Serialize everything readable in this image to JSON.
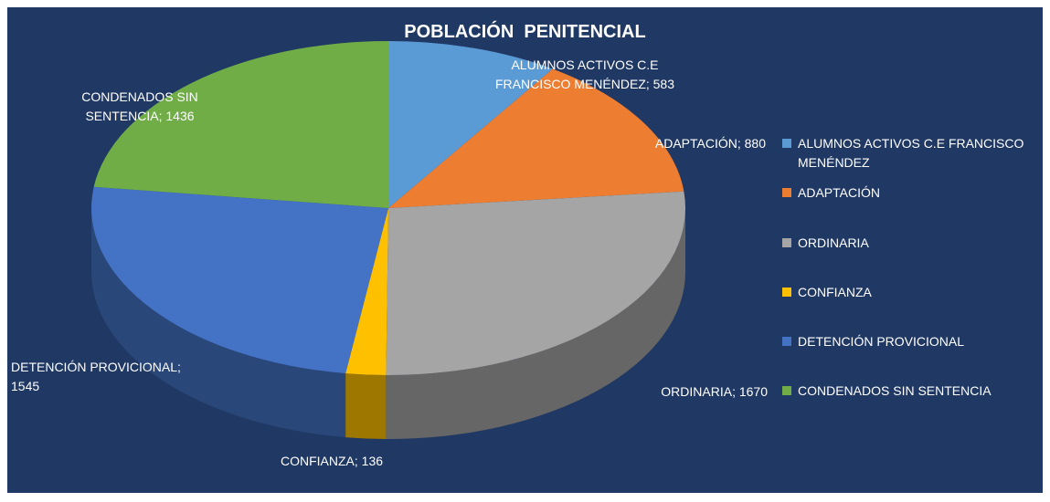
{
  "chart_data": {
    "type": "pie",
    "title": "POBLACIÓN  PENITENCIAL",
    "categories": [
      "ALUMNOS ACTIVOS C.E FRANCISCO MENÉNDEZ",
      "ADAPTACIÓN",
      "ORDINARIA",
      "CONFIANZA",
      "DETENCIÓN PROVICIONAL",
      "CONDENADOS SIN SENTENCIA"
    ],
    "values": [
      583,
      880,
      1670,
      136,
      1545,
      1436
    ],
    "value_labels": [
      "ALUMNOS ACTIVOS C.E FRANCISCO MENÉNDEZ; 583",
      "ADAPTACIÓN; 880",
      "ORDINARIA; 1670",
      "CONFIANZA; 136",
      "DETENCIÓN PROVICIONAL; 1545",
      "CONDENADOS SIN SENTENCIA; 1436"
    ],
    "colors": [
      "#5b9bd5",
      "#ed7d31",
      "#a5a5a5",
      "#ffc000",
      "#4472c4",
      "#70ad47"
    ],
    "legend": "right"
  }
}
